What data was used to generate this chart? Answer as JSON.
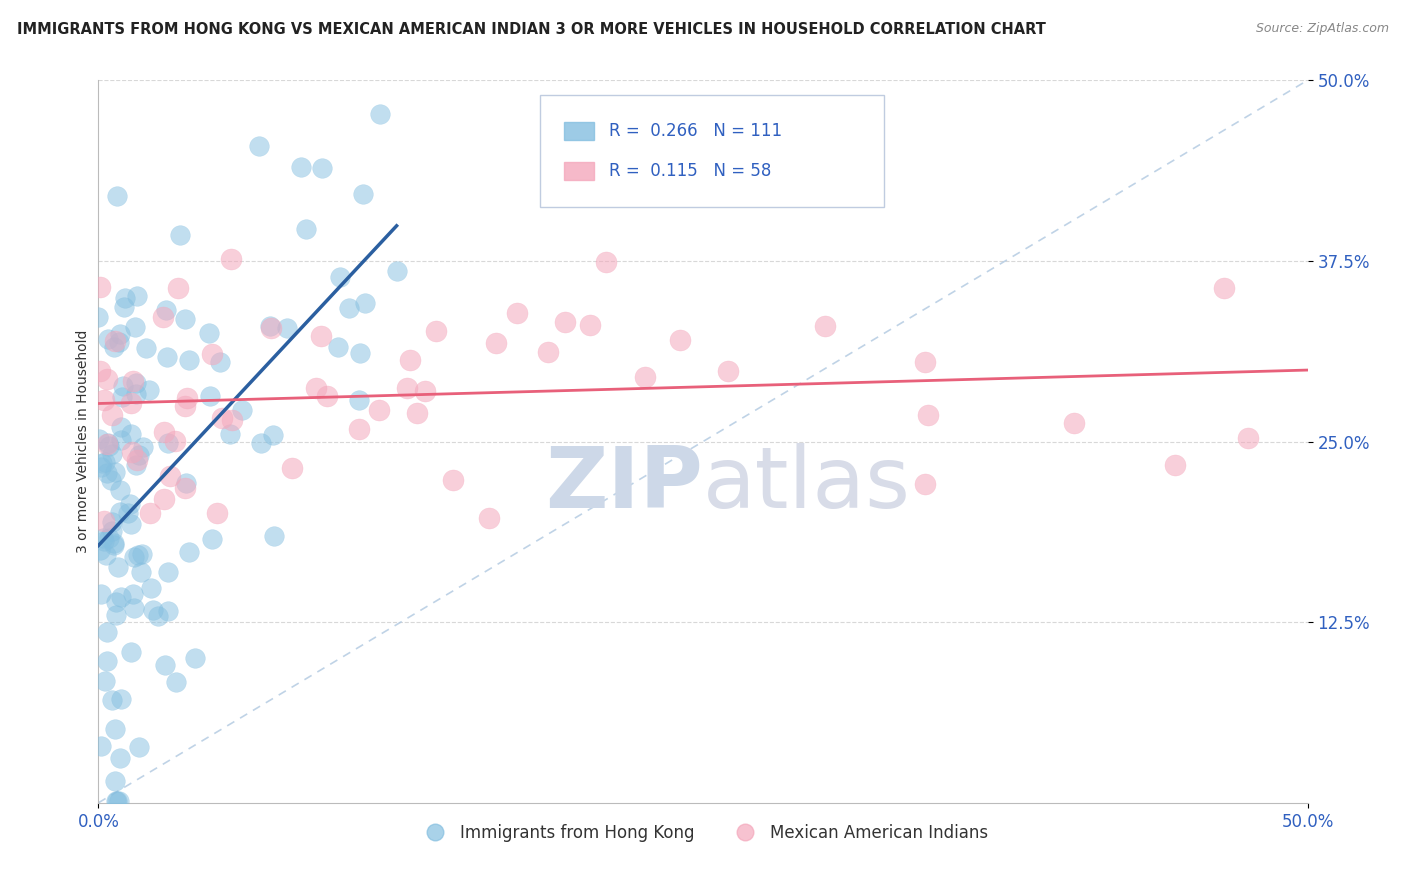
{
  "title": "IMMIGRANTS FROM HONG KONG VS MEXICAN AMERICAN INDIAN 3 OR MORE VEHICLES IN HOUSEHOLD CORRELATION CHART",
  "source": "Source: ZipAtlas.com",
  "ylabel": "3 or more Vehicles in Household",
  "xlim": [
    0.0,
    0.5
  ],
  "ylim": [
    0.0,
    0.5
  ],
  "xtick_positions": [
    0.0,
    0.5
  ],
  "xtick_labels": [
    "0.0%",
    "50.0%"
  ],
  "ytick_positions": [
    0.125,
    0.25,
    0.375,
    0.5
  ],
  "ytick_labels": [
    "12.5%",
    "25.0%",
    "37.5%",
    "50.0%"
  ],
  "legend_entries": [
    {
      "label": "Immigrants from Hong Kong",
      "color": "#85bfe0"
    },
    {
      "label": "Mexican American Indians",
      "color": "#f4a8bc"
    }
  ],
  "hk_R": 0.266,
  "hk_N": 111,
  "mai_R": 0.115,
  "mai_N": 58,
  "hk_color": "#85bfe0",
  "mai_color": "#f4a8bc",
  "hk_line_color": "#2b5fa0",
  "mai_line_color": "#e8607a",
  "diag_color": "#b0c8e0",
  "watermark_zip": "ZIP",
  "watermark_atlas": "atlas",
  "background_color": "#ffffff",
  "grid_color": "#d8d8d8",
  "title_color": "#222222",
  "source_color": "#888888",
  "tick_color": "#3060c0",
  "ylabel_color": "#333333"
}
